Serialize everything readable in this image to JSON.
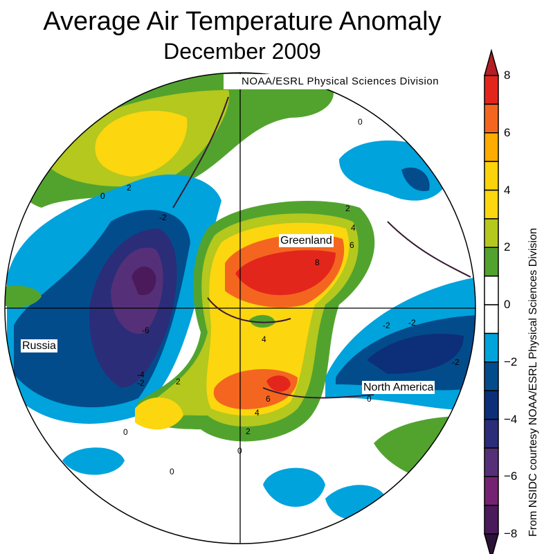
{
  "title": "Average Air Temperature Anomaly",
  "subtitle": "December 2009",
  "credit": "NOAA/ESRL Physical Sciences Division",
  "side_credit": "From NSIDC courtesy NOAA/ESRL Physical Sciences Division",
  "regions": {
    "greenland": "Greenland",
    "russia": "Russia",
    "north_america": "North America"
  },
  "contour_labels": [
    "0",
    "2",
    "-2",
    "-2",
    "0",
    "-6",
    "-4",
    "-2",
    "2",
    "4",
    "6",
    "8",
    "2",
    "4",
    "6",
    "4",
    "2",
    "0",
    "-2",
    "-2",
    "0",
    "0",
    "0"
  ],
  "colorbar": {
    "ticks": [
      "8",
      "6",
      "4",
      "2",
      "0",
      "−2",
      "−4",
      "−6",
      "−8"
    ],
    "range": [
      -8,
      8
    ],
    "colors": [
      "#4a1a5a",
      "#762272",
      "#553078",
      "#2b2d79",
      "#0d2f7a",
      "#034c8c",
      "#00a3dc",
      "#ffffff",
      "#ffffff",
      "#52a32e",
      "#b4c81e",
      "#fcd60f",
      "#fcd20a",
      "#ffac00",
      "#f4661f",
      "#e3261c"
    ],
    "under_color": "#2a1238",
    "over_color": "#b51f24"
  }
}
